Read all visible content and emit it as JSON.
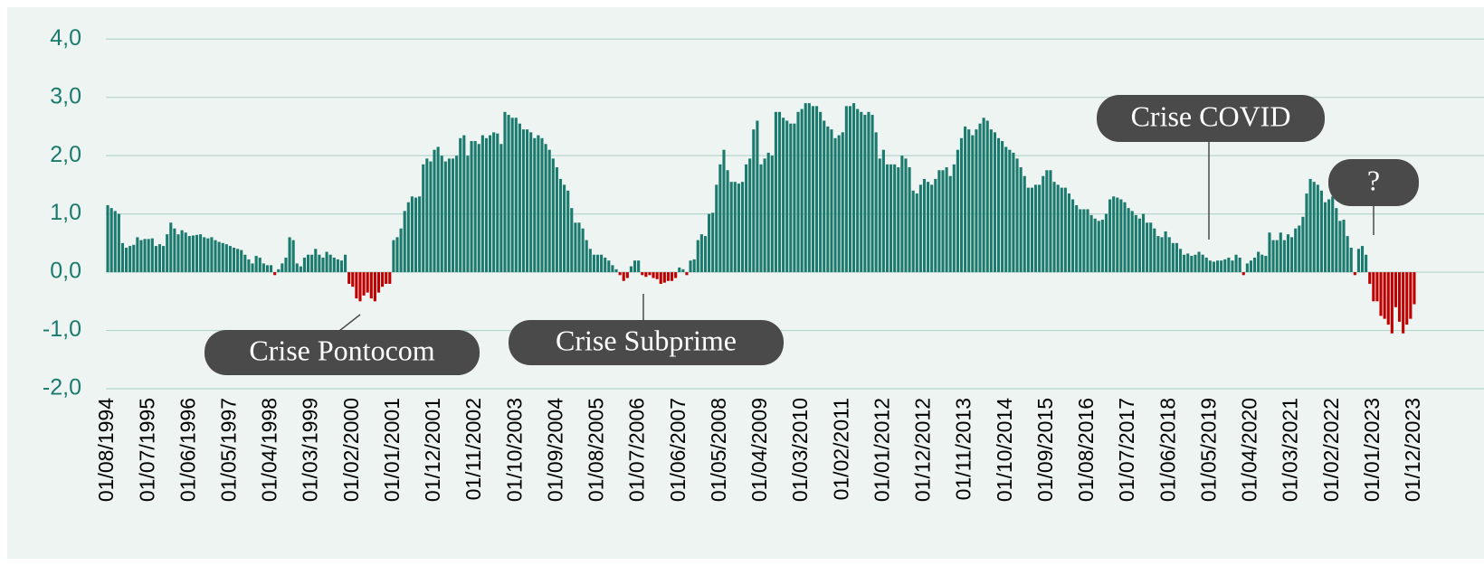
{
  "chart_data": {
    "type": "bar",
    "categories": [
      "01/08/1994",
      null,
      null,
      null,
      null,
      null,
      null,
      null,
      null,
      null,
      null,
      "01/07/1995",
      null,
      null,
      null,
      null,
      null,
      null,
      null,
      null,
      null,
      null,
      "01/06/1996",
      null,
      null,
      null,
      null,
      null,
      null,
      null,
      null,
      null,
      null,
      "01/05/1997",
      null,
      null,
      null,
      null,
      null,
      null,
      null,
      null,
      null,
      null,
      "01/04/1998",
      null,
      null,
      null,
      null,
      null,
      null,
      null,
      null,
      null,
      null,
      "01/03/1999",
      null,
      null,
      null,
      null,
      null,
      null,
      null,
      null,
      null,
      null,
      "01/02/2000",
      null,
      null,
      null,
      null,
      null,
      null,
      null,
      null,
      null,
      null,
      "01/01/2001",
      null,
      null,
      null,
      null,
      null,
      null,
      null,
      null,
      null,
      null,
      "01/12/2001",
      null,
      null,
      null,
      null,
      null,
      null,
      null,
      null,
      null,
      null,
      "01/11/2002",
      null,
      null,
      null,
      null,
      null,
      null,
      null,
      null,
      null,
      null,
      "01/10/2003",
      null,
      null,
      null,
      null,
      null,
      null,
      null,
      null,
      null,
      null,
      "01/09/2004",
      null,
      null,
      null,
      null,
      null,
      null,
      null,
      null,
      null,
      null,
      "01/08/2005",
      null,
      null,
      null,
      null,
      null,
      null,
      null,
      null,
      null,
      null,
      "01/07/2006",
      null,
      null,
      null,
      null,
      null,
      null,
      null,
      null,
      null,
      null,
      "01/06/2007",
      null,
      null,
      null,
      null,
      null,
      null,
      null,
      null,
      null,
      null,
      "01/05/2008",
      null,
      null,
      null,
      null,
      null,
      null,
      null,
      null,
      null,
      null,
      "01/04/2009",
      null,
      null,
      null,
      null,
      null,
      null,
      null,
      null,
      null,
      null,
      "01/03/2010",
      null,
      null,
      null,
      null,
      null,
      null,
      null,
      null,
      null,
      null,
      "01/02/2011",
      null,
      null,
      null,
      null,
      null,
      null,
      null,
      null,
      null,
      null,
      "01/01/2012",
      null,
      null,
      null,
      null,
      null,
      null,
      null,
      null,
      null,
      null,
      "01/12/2012",
      null,
      null,
      null,
      null,
      null,
      null,
      null,
      null,
      null,
      null,
      "01/11/2013",
      null,
      null,
      null,
      null,
      null,
      null,
      null,
      null,
      null,
      null,
      "01/10/2014",
      null,
      null,
      null,
      null,
      null,
      null,
      null,
      null,
      null,
      null,
      "01/09/2015",
      null,
      null,
      null,
      null,
      null,
      null,
      null,
      null,
      null,
      null,
      "01/08/2016",
      null,
      null,
      null,
      null,
      null,
      null,
      null,
      null,
      null,
      null,
      "01/07/2017",
      null,
      null,
      null,
      null,
      null,
      null,
      null,
      null,
      null,
      null,
      "01/06/2018",
      null,
      null,
      null,
      null,
      null,
      null,
      null,
      null,
      null,
      null,
      "01/05/2019",
      null,
      null,
      null,
      null,
      null,
      null,
      null,
      null,
      null,
      null,
      "01/04/2020",
      null,
      null,
      null,
      null,
      null,
      null,
      null,
      null,
      null,
      null,
      "01/03/2021",
      null,
      null,
      null,
      null,
      null,
      null,
      null,
      null,
      null,
      null,
      "01/02/2022",
      null,
      null,
      null,
      null,
      null,
      null,
      null,
      null,
      null,
      null,
      "01/01/2023",
      null,
      null,
      null,
      null,
      null,
      null,
      null,
      null,
      null,
      null,
      "01/12/2023"
    ],
    "values": [
      1.15,
      1.1,
      1.05,
      1.0,
      0.5,
      0.42,
      0.45,
      0.47,
      0.6,
      0.55,
      0.57,
      0.57,
      0.58,
      0.45,
      0.48,
      0.45,
      0.65,
      0.85,
      0.75,
      0.65,
      0.72,
      0.68,
      0.62,
      0.63,
      0.64,
      0.65,
      0.6,
      0.58,
      0.6,
      0.55,
      0.52,
      0.5,
      0.48,
      0.45,
      0.42,
      0.4,
      0.38,
      0.3,
      0.22,
      0.15,
      0.28,
      0.25,
      0.15,
      0.12,
      0.12,
      -0.05,
      0.05,
      0.15,
      0.25,
      0.6,
      0.55,
      0.15,
      0.1,
      0.25,
      0.3,
      0.3,
      0.4,
      0.3,
      0.25,
      0.35,
      0.3,
      0.25,
      0.22,
      0.2,
      0.3,
      -0.2,
      -0.25,
      -0.45,
      -0.5,
      -0.4,
      -0.35,
      -0.45,
      -0.5,
      -0.35,
      -0.25,
      -0.2,
      -0.2,
      0.55,
      0.6,
      0.75,
      1.05,
      1.2,
      1.3,
      1.28,
      1.3,
      1.85,
      1.95,
      1.9,
      2.1,
      2.15,
      2.0,
      1.9,
      1.95,
      1.95,
      2.0,
      2.3,
      2.35,
      2.0,
      2.25,
      2.25,
      2.2,
      2.35,
      2.3,
      2.35,
      2.4,
      2.38,
      2.2,
      2.75,
      2.7,
      2.65,
      2.65,
      2.55,
      2.45,
      2.45,
      2.4,
      2.3,
      2.35,
      2.3,
      2.2,
      2.1,
      1.95,
      1.8,
      1.6,
      1.5,
      1.4,
      1.1,
      0.85,
      0.85,
      0.75,
      0.55,
      0.4,
      0.3,
      0.3,
      0.3,
      0.25,
      0.2,
      0.12,
      0.05,
      -0.05,
      -0.15,
      -0.1,
      0.1,
      0.2,
      0.2,
      -0.05,
      -0.08,
      -0.05,
      -0.1,
      -0.12,
      -0.2,
      -0.18,
      -0.15,
      -0.15,
      -0.1,
      0.08,
      0.05,
      -0.05,
      0.2,
      0.22,
      0.55,
      0.65,
      0.62,
      1.0,
      1.02,
      1.5,
      1.85,
      2.1,
      1.75,
      1.55,
      1.55,
      1.52,
      1.55,
      1.85,
      1.95,
      2.45,
      2.6,
      1.85,
      1.95,
      2.05,
      2.0,
      2.75,
      2.75,
      2.65,
      2.6,
      2.55,
      2.55,
      2.75,
      2.8,
      2.9,
      2.9,
      2.85,
      2.85,
      2.75,
      2.6,
      2.5,
      2.45,
      2.3,
      2.35,
      2.4,
      2.85,
      2.85,
      2.9,
      2.8,
      2.75,
      2.7,
      2.75,
      2.7,
      2.4,
      1.95,
      2.1,
      1.85,
      1.85,
      1.85,
      1.8,
      2.0,
      1.95,
      1.8,
      1.4,
      1.35,
      1.5,
      1.6,
      1.55,
      1.5,
      1.6,
      1.75,
      1.75,
      1.8,
      1.65,
      1.85,
      2.1,
      2.3,
      2.5,
      2.45,
      2.35,
      2.45,
      2.55,
      2.65,
      2.6,
      2.45,
      2.4,
      2.3,
      2.25,
      2.15,
      2.1,
      2.05,
      1.95,
      1.8,
      1.65,
      1.45,
      1.45,
      1.5,
      1.5,
      1.65,
      1.75,
      1.75,
      1.55,
      1.5,
      1.45,
      1.45,
      1.35,
      1.25,
      1.15,
      1.08,
      1.08,
      1.08,
      0.98,
      0.92,
      0.88,
      0.9,
      1.0,
      1.25,
      1.3,
      1.28,
      1.25,
      1.2,
      1.1,
      1.05,
      0.98,
      0.92,
      1.0,
      0.85,
      0.85,
      0.75,
      0.62,
      0.6,
      0.7,
      0.6,
      0.5,
      0.5,
      0.4,
      0.3,
      0.32,
      0.28,
      0.3,
      0.35,
      0.3,
      0.25,
      0.2,
      0.18,
      0.2,
      0.2,
      0.22,
      0.25,
      0.2,
      0.3,
      0.25,
      -0.05,
      0.15,
      0.2,
      0.25,
      0.35,
      0.3,
      0.28,
      0.68,
      0.55,
      0.55,
      0.68,
      0.55,
      0.65,
      0.6,
      0.75,
      0.8,
      0.95,
      1.35,
      1.6,
      1.55,
      1.5,
      1.4,
      1.2,
      1.25,
      1.3,
      1.1,
      0.88,
      0.9,
      0.62,
      0.42,
      -0.05,
      0.4,
      0.45,
      0.3,
      -0.2,
      -0.5,
      -0.5,
      -0.75,
      -0.8,
      -0.9,
      -1.05,
      -0.6,
      -0.85,
      -1.05,
      -0.9,
      -0.8,
      -0.55
    ],
    "color": "#1b7a6e",
    "negative_color": "#c00000",
    "ylim": [
      -2,
      4.5
    ],
    "yticks": [
      {
        "value": -2,
        "label": "-2,0"
      },
      {
        "value": -1,
        "label": "-1,0"
      },
      {
        "value": 0,
        "label": "0,0"
      },
      {
        "value": 1,
        "label": "1,0"
      },
      {
        "value": 2,
        "label": "2,0"
      },
      {
        "value": 3,
        "label": "3,0"
      },
      {
        "value": 4,
        "label": "4,0"
      }
    ],
    "grid": true,
    "annotations": [
      "Crise Pontocom",
      "Crise Subprime",
      "Crise COVID",
      "?"
    ]
  }
}
